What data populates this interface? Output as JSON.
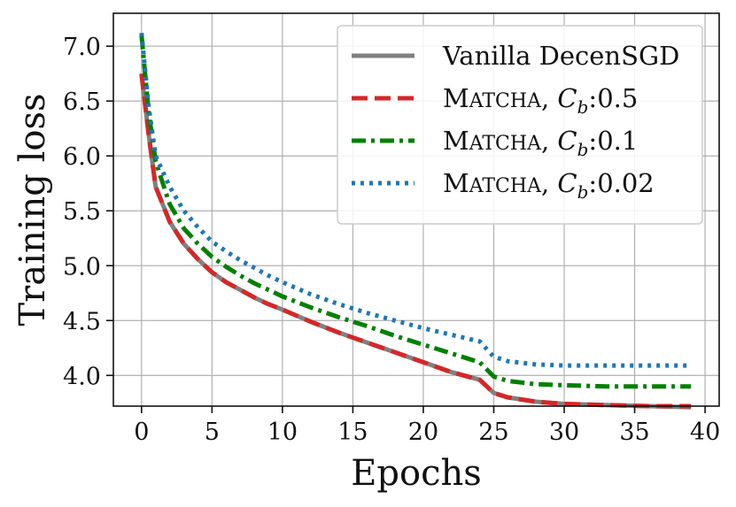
{
  "chart_data": {
    "type": "line",
    "title": "",
    "xlabel": "Epochs",
    "ylabel": "Training loss",
    "xlim": [
      -2,
      41
    ],
    "ylim": [
      3.72,
      7.3
    ],
    "xticks": [
      0,
      5,
      10,
      15,
      20,
      25,
      30,
      35,
      40
    ],
    "xtick_labels": [
      "0",
      "5",
      "10",
      "15",
      "20",
      "25",
      "30",
      "35",
      "40"
    ],
    "yticks": [
      4.0,
      4.5,
      5.0,
      5.5,
      6.0,
      6.5,
      7.0
    ],
    "ytick_labels": [
      "4.0",
      "4.5",
      "5.0",
      "5.5",
      "6.0",
      "6.5",
      "7.0"
    ],
    "grid": true,
    "legend_position": "top-right",
    "series": [
      {
        "name": "Vanilla DecenSGD",
        "legend_parts": [
          "Vanilla DecenSGD"
        ],
        "color": "#808080",
        "style": "solid",
        "x": [
          0,
          0.5,
          1,
          2,
          3,
          4,
          5,
          6,
          7,
          8,
          9,
          10,
          12,
          14,
          16,
          18,
          20,
          22,
          24,
          25,
          26,
          28,
          30,
          33,
          36,
          39
        ],
        "y": [
          6.74,
          6.2,
          5.72,
          5.4,
          5.2,
          5.06,
          4.94,
          4.85,
          4.78,
          4.71,
          4.65,
          4.6,
          4.49,
          4.39,
          4.3,
          4.21,
          4.12,
          4.03,
          3.96,
          3.84,
          3.8,
          3.76,
          3.74,
          3.73,
          3.72,
          3.71
        ]
      },
      {
        "name": "MATCHA, Cb:0.5",
        "legend_parts": [
          "M",
          "ATCHA",
          ", ",
          "C",
          "b",
          ":0.5"
        ],
        "color": "#d62728",
        "style": "dashed",
        "x": [
          0,
          0.5,
          1,
          2,
          3,
          4,
          5,
          6,
          7,
          8,
          9,
          10,
          12,
          14,
          16,
          18,
          20,
          22,
          24,
          25,
          26,
          28,
          30,
          33,
          36,
          39
        ],
        "y": [
          6.75,
          6.2,
          5.72,
          5.4,
          5.2,
          5.06,
          4.94,
          4.85,
          4.78,
          4.71,
          4.65,
          4.6,
          4.49,
          4.39,
          4.3,
          4.21,
          4.12,
          4.03,
          3.96,
          3.84,
          3.8,
          3.76,
          3.74,
          3.73,
          3.72,
          3.72
        ]
      },
      {
        "name": "MATCHA, Cb:0.1",
        "legend_parts": [
          "M",
          "ATCHA",
          ", ",
          "C",
          "b",
          ":0.1"
        ],
        "color": "#008000",
        "style": "dashdot",
        "x": [
          0,
          0.5,
          1,
          2,
          3,
          4,
          5,
          6,
          7,
          8,
          9,
          10,
          12,
          14,
          16,
          18,
          20,
          22,
          24,
          25,
          26,
          28,
          30,
          33,
          36,
          39
        ],
        "y": [
          7.1,
          6.4,
          5.95,
          5.56,
          5.34,
          5.2,
          5.08,
          4.99,
          4.91,
          4.84,
          4.78,
          4.72,
          4.62,
          4.53,
          4.45,
          4.36,
          4.28,
          4.2,
          4.12,
          3.99,
          3.95,
          3.92,
          3.91,
          3.9,
          3.9,
          3.9
        ]
      },
      {
        "name": "MATCHA, Cb:0.02",
        "legend_parts": [
          "M",
          "ATCHA",
          ", ",
          "C",
          "b",
          ":0.02"
        ],
        "color": "#1f77b4",
        "style": "dotted",
        "x": [
          0,
          0.5,
          1,
          2,
          3,
          4,
          5,
          6,
          7,
          8,
          9,
          10,
          12,
          14,
          16,
          18,
          20,
          22,
          24,
          25,
          26,
          28,
          30,
          33,
          36,
          39
        ],
        "y": [
          7.12,
          6.45,
          6.0,
          5.72,
          5.5,
          5.35,
          5.22,
          5.13,
          5.05,
          4.98,
          4.91,
          4.85,
          4.74,
          4.65,
          4.57,
          4.5,
          4.43,
          4.37,
          4.31,
          4.17,
          4.13,
          4.1,
          4.09,
          4.09,
          4.09,
          4.09
        ]
      }
    ]
  }
}
